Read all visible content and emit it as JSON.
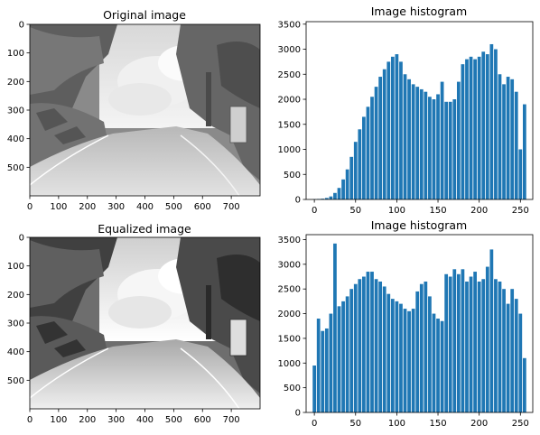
{
  "colors": {
    "bar": "#1f77b4",
    "frame": "#000000",
    "background": "#ffffff"
  },
  "chart_data": [
    {
      "type": "image",
      "title": "Original image",
      "content": "grayscale photo of a winding road through trees with a stone retaining wall on the left, clouds in the sky",
      "xlim": [
        0,
        800
      ],
      "ylim": [
        600,
        0
      ],
      "xticks": [
        "0",
        "100",
        "200",
        "300",
        "400",
        "500",
        "600",
        "700"
      ],
      "yticks": [
        "0",
        "100",
        "200",
        "300",
        "400",
        "500"
      ],
      "grid": false
    },
    {
      "type": "bar",
      "title": "Image histogram",
      "xlabel": "",
      "ylabel": "",
      "xlim": [
        -10,
        265
      ],
      "ylim": [
        0,
        3550
      ],
      "xticks": [
        "0",
        "50",
        "100",
        "150",
        "200",
        "250"
      ],
      "yticks": [
        "0",
        "500",
        "1000",
        "1500",
        "2000",
        "2500",
        "3000",
        "3500"
      ],
      "grid": false,
      "x": [
        0,
        5,
        10,
        15,
        20,
        25,
        30,
        35,
        40,
        45,
        50,
        55,
        60,
        65,
        70,
        75,
        80,
        85,
        90,
        95,
        100,
        105,
        110,
        115,
        120,
        125,
        130,
        135,
        140,
        145,
        150,
        155,
        160,
        165,
        170,
        175,
        180,
        185,
        190,
        195,
        200,
        205,
        210,
        215,
        220,
        225,
        230,
        235,
        240,
        245,
        250,
        255
      ],
      "values": [
        5,
        10,
        15,
        30,
        60,
        130,
        230,
        400,
        600,
        850,
        1150,
        1400,
        1650,
        1850,
        2050,
        2250,
        2450,
        2600,
        2750,
        2850,
        2900,
        2750,
        2500,
        2400,
        2300,
        2250,
        2200,
        2150,
        2050,
        2000,
        2100,
        2350,
        1950,
        1950,
        2000,
        2350,
        2700,
        2800,
        2850,
        2800,
        2850,
        2950,
        2900,
        3100,
        3000,
        2500,
        2300,
        2450,
        2400,
        2150,
        1000,
        1900
      ]
    },
    {
      "type": "image",
      "title": "Equalized image",
      "content": "higher-contrast grayscale version of the same road scene",
      "xlim": [
        0,
        800
      ],
      "ylim": [
        600,
        0
      ],
      "xticks": [
        "0",
        "100",
        "200",
        "300",
        "400",
        "500",
        "600",
        "700"
      ],
      "yticks": [
        "0",
        "100",
        "200",
        "300",
        "400",
        "500"
      ],
      "grid": false
    },
    {
      "type": "bar",
      "title": "Image histogram",
      "xlabel": "",
      "ylabel": "",
      "xlim": [
        -10,
        265
      ],
      "ylim": [
        0,
        3600
      ],
      "xticks": [
        "0",
        "50",
        "100",
        "150",
        "200",
        "250"
      ],
      "yticks": [
        "0",
        "500",
        "1000",
        "1500",
        "2000",
        "2500",
        "3000",
        "3500"
      ],
      "grid": false,
      "x": [
        0,
        5,
        10,
        15,
        20,
        25,
        30,
        35,
        40,
        45,
        50,
        55,
        60,
        65,
        70,
        75,
        80,
        85,
        90,
        95,
        100,
        105,
        110,
        115,
        120,
        125,
        130,
        135,
        140,
        145,
        150,
        155,
        160,
        165,
        170,
        175,
        180,
        185,
        190,
        195,
        200,
        205,
        210,
        215,
        220,
        225,
        230,
        235,
        240,
        245,
        250,
        255
      ],
      "values": [
        950,
        1900,
        1650,
        1700,
        2000,
        3420,
        2150,
        2250,
        2350,
        2500,
        2600,
        2700,
        2750,
        2850,
        2850,
        2700,
        2650,
        2550,
        2400,
        2300,
        2250,
        2200,
        2100,
        2050,
        2100,
        2450,
        2600,
        2650,
        2350,
        2000,
        1900,
        1850,
        2800,
        2750,
        2900,
        2800,
        2900,
        2650,
        2750,
        2850,
        2650,
        2700,
        2950,
        3300,
        2700,
        2650,
        2500,
        2200,
        2500,
        2300,
        2000,
        1100
      ]
    }
  ]
}
